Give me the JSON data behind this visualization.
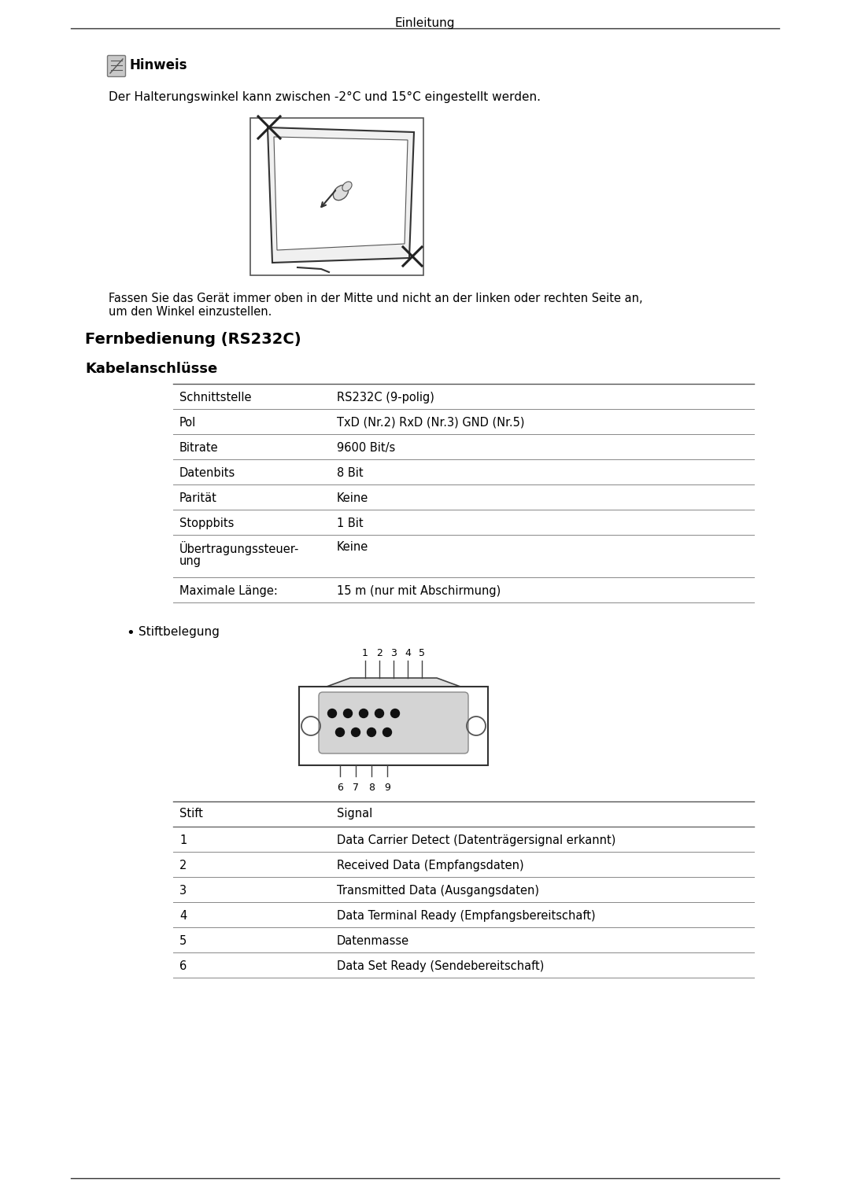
{
  "page_title": "Einleitung",
  "bg_color": "#ffffff",
  "text_color": "#000000",
  "hinweis_label": "Hinweis",
  "hinweis_text": "Der Halterungswinkel kann zwischen -2°C und 15°C eingestellt werden.",
  "caption_text": "Fassen Sie das Gerät immer oben in der Mitte und nicht an der linken oder rechten Seite an,\num den Winkel einzustellen.",
  "section1_title": "Fernbedienung (RS232C)",
  "section2_title": "Kabelanschlüsse",
  "table1_rows": [
    [
      "Schnittstelle",
      "RS232C (9-polig)"
    ],
    [
      "Pol",
      "TxD (Nr.2) RxD (Nr.3) GND (Nr.5)"
    ],
    [
      "Bitrate",
      "9600 Bit/s"
    ],
    [
      "Datenbits",
      "8 Bit"
    ],
    [
      "Parität",
      "Keine"
    ],
    [
      "Stoppbits",
      "1 Bit"
    ],
    [
      "Übertragungssteuer-\nung",
      "Keine"
    ],
    [
      "Maximale Länge:",
      "15 m (nur mit Abschirmung)"
    ]
  ],
  "stift_label": "Stiftbelegung",
  "table2_header": [
    "Stift",
    "Signal"
  ],
  "table2_rows": [
    [
      "1",
      "Data Carrier Detect (Datenträgersignal erkannt)"
    ],
    [
      "2",
      "Received Data (Empfangsdaten)"
    ],
    [
      "3",
      "Transmitted Data (Ausgangsdaten)"
    ],
    [
      "4",
      "Data Terminal Ready (Empfangsbereitschaft)"
    ],
    [
      "5",
      "Datenmasse"
    ],
    [
      "6",
      "Data Set Ready (Sendebereitschaft)"
    ]
  ]
}
